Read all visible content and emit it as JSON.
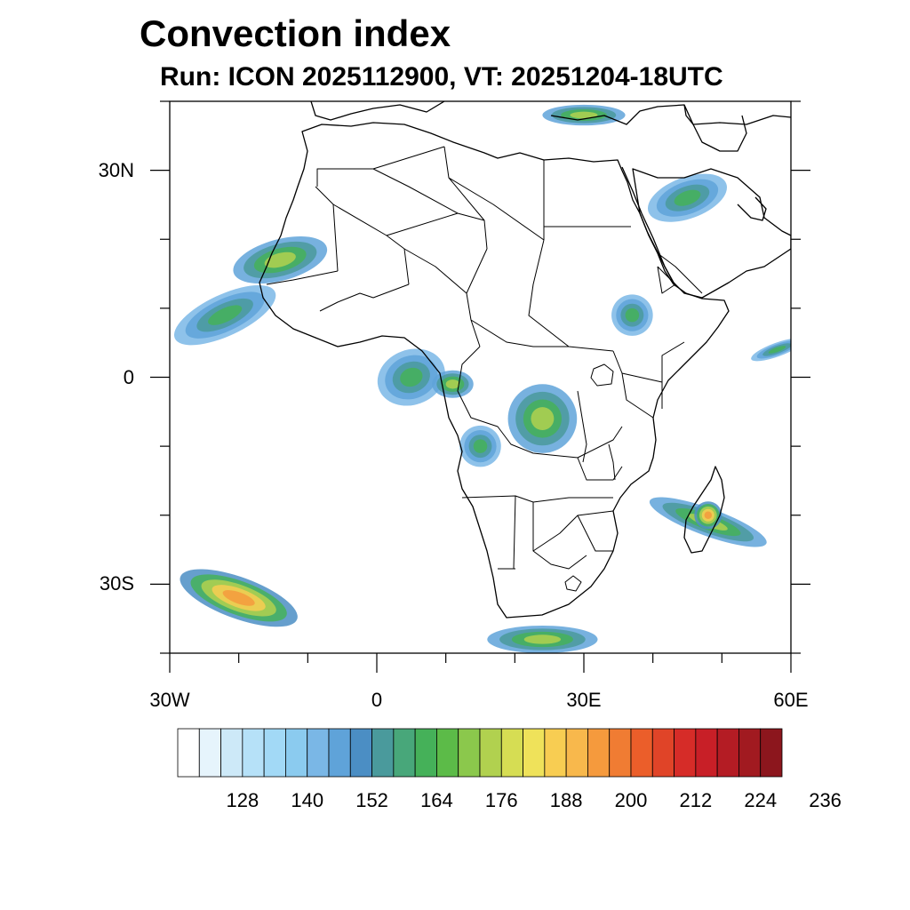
{
  "title": "Convection index",
  "subtitle": "Run: ICON 2025112900,  VT: 20251204-18UTC",
  "map": {
    "extent": {
      "lon_min": -30,
      "lon_max": 60,
      "lat_min": -40,
      "lat_max": 40
    },
    "lat_ticks": [
      {
        "value": 30,
        "label": "30N"
      },
      {
        "value": 0,
        "label": "0"
      },
      {
        "value": -30,
        "label": "30S"
      }
    ],
    "lon_ticks": [
      {
        "value": -30,
        "label": "30W"
      },
      {
        "value": 0,
        "label": "0"
      },
      {
        "value": 30,
        "label": "30E"
      },
      {
        "value": 60,
        "label": "60E"
      }
    ],
    "background_color": "#ffffff",
    "border_color": "#000000"
  },
  "colorbar": {
    "colors": [
      "#ffffff",
      "#e6f4fc",
      "#cde9f8",
      "#b6e1f8",
      "#a2d9f6",
      "#8bcbef",
      "#7ab7e6",
      "#5fa3d9",
      "#4b8ec4",
      "#4a9a9c",
      "#48a77a",
      "#45b159",
      "#5cbb48",
      "#8bc84c",
      "#b1d14f",
      "#d6dd53",
      "#efe25a",
      "#f8cd52",
      "#f8b84c",
      "#f59a3d",
      "#f07c33",
      "#eb5e2a",
      "#e04428",
      "#d62c28",
      "#c81f27",
      "#b41c24",
      "#a11a20",
      "#8c161d"
    ],
    "labels": [
      "128",
      "140",
      "152",
      "164",
      "176",
      "188",
      "200",
      "212",
      "224",
      "236"
    ]
  },
  "chart_data": {
    "type": "heatmap",
    "title": "Convection index",
    "subtitle": "Run: ICON 2025112900,  VT: 20251204-18UTC",
    "variable": "Convection index",
    "colorbar_ticks": [
      128,
      140,
      152,
      164,
      176,
      188,
      200,
      212,
      224,
      236
    ],
    "xlim": [
      -30,
      60
    ],
    "ylim": [
      -40,
      40
    ],
    "convective_regions": [
      {
        "lon": -22,
        "lat": 9,
        "rx": 8,
        "ry": 3,
        "rot": -25,
        "level": 1
      },
      {
        "lon": -14,
        "lat": 17,
        "rx": 7,
        "ry": 3,
        "rot": -15,
        "level": 2
      },
      {
        "lon": 5,
        "lat": 0,
        "rx": 5,
        "ry": 4,
        "rot": -20,
        "level": 1
      },
      {
        "lon": 11,
        "lat": -1,
        "rx": 3,
        "ry": 2,
        "rot": 0,
        "level": 2
      },
      {
        "lon": 24,
        "lat": -6,
        "rx": 5,
        "ry": 5,
        "rot": 0,
        "level": 2
      },
      {
        "lon": 15,
        "lat": -10,
        "rx": 3,
        "ry": 3,
        "rot": 0,
        "level": 1
      },
      {
        "lon": 37,
        "lat": 9,
        "rx": 3,
        "ry": 3,
        "rot": 0,
        "level": 1
      },
      {
        "lon": 48,
        "lat": -21,
        "rx": 9,
        "ry": 2,
        "rot": 20,
        "level": 2
      },
      {
        "lon": 48,
        "lat": -20,
        "rx": 2,
        "ry": 2,
        "rot": 0,
        "level": 4
      },
      {
        "lon": -20,
        "lat": -32,
        "rx": 9,
        "ry": 3,
        "rot": 20,
        "level": 4
      },
      {
        "lon": 24,
        "lat": -38,
        "rx": 8,
        "ry": 2,
        "rot": 0,
        "level": 2
      },
      {
        "lon": 45,
        "lat": 26,
        "rx": 6,
        "ry": 3,
        "rot": -20,
        "level": 1
      },
      {
        "lon": 30,
        "lat": 38,
        "rx": 6,
        "ry": 1.5,
        "rot": 0,
        "level": 2
      },
      {
        "lon": 58,
        "lat": 4,
        "rx": 4,
        "ry": 1,
        "rot": -20,
        "level": 1
      }
    ]
  }
}
